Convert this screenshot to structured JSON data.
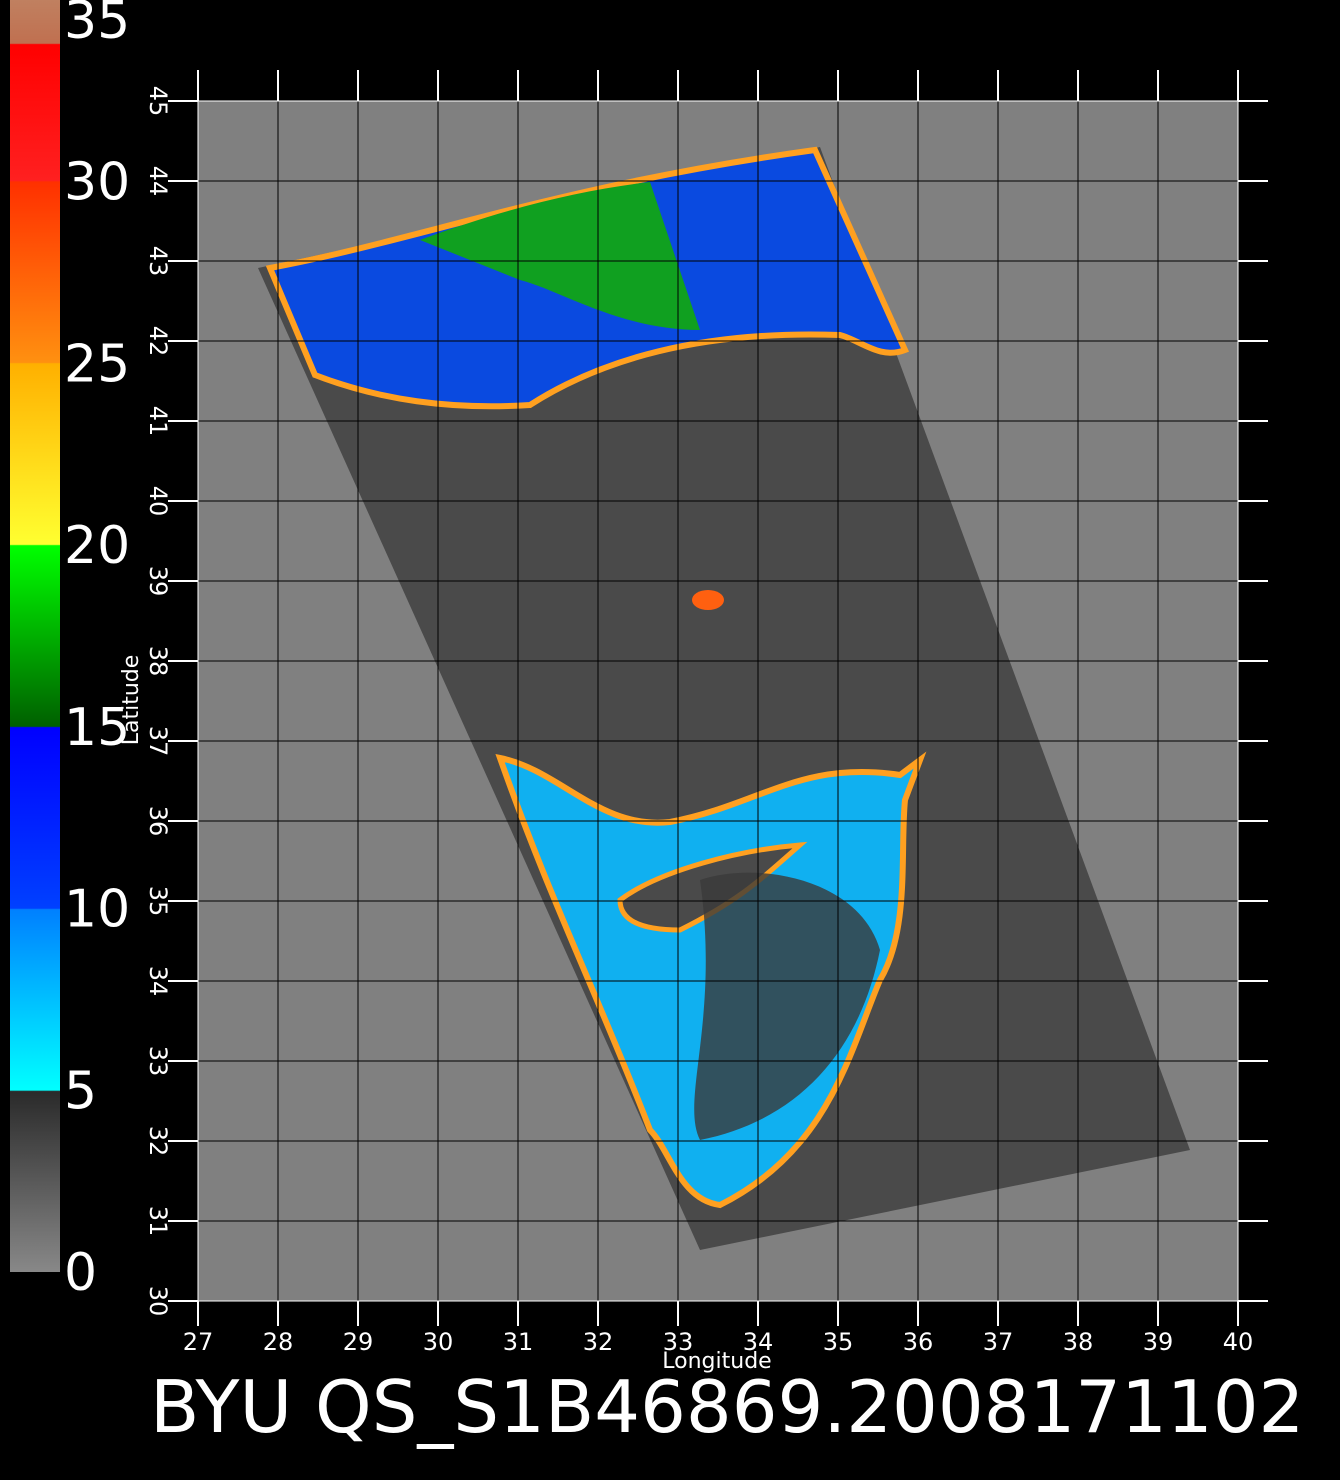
{
  "map": {
    "title": "BYU QS_S1B46869.2008171102",
    "x_label": "Longitude",
    "y_label": "Latitude",
    "xlim": [
      27,
      40
    ],
    "ylim": [
      30,
      45
    ],
    "xticks": [
      27,
      28,
      29,
      30,
      31,
      32,
      33,
      34,
      35,
      36,
      37,
      38,
      39,
      40
    ],
    "yticks": [
      30,
      31,
      32,
      33,
      34,
      35,
      36,
      37,
      38,
      39,
      40,
      41,
      42,
      43,
      44,
      45
    ],
    "colorbar": {
      "lim": [
        0,
        35
      ],
      "ticks": [
        0,
        5,
        10,
        15,
        20,
        25,
        30,
        35
      ]
    }
  }
}
